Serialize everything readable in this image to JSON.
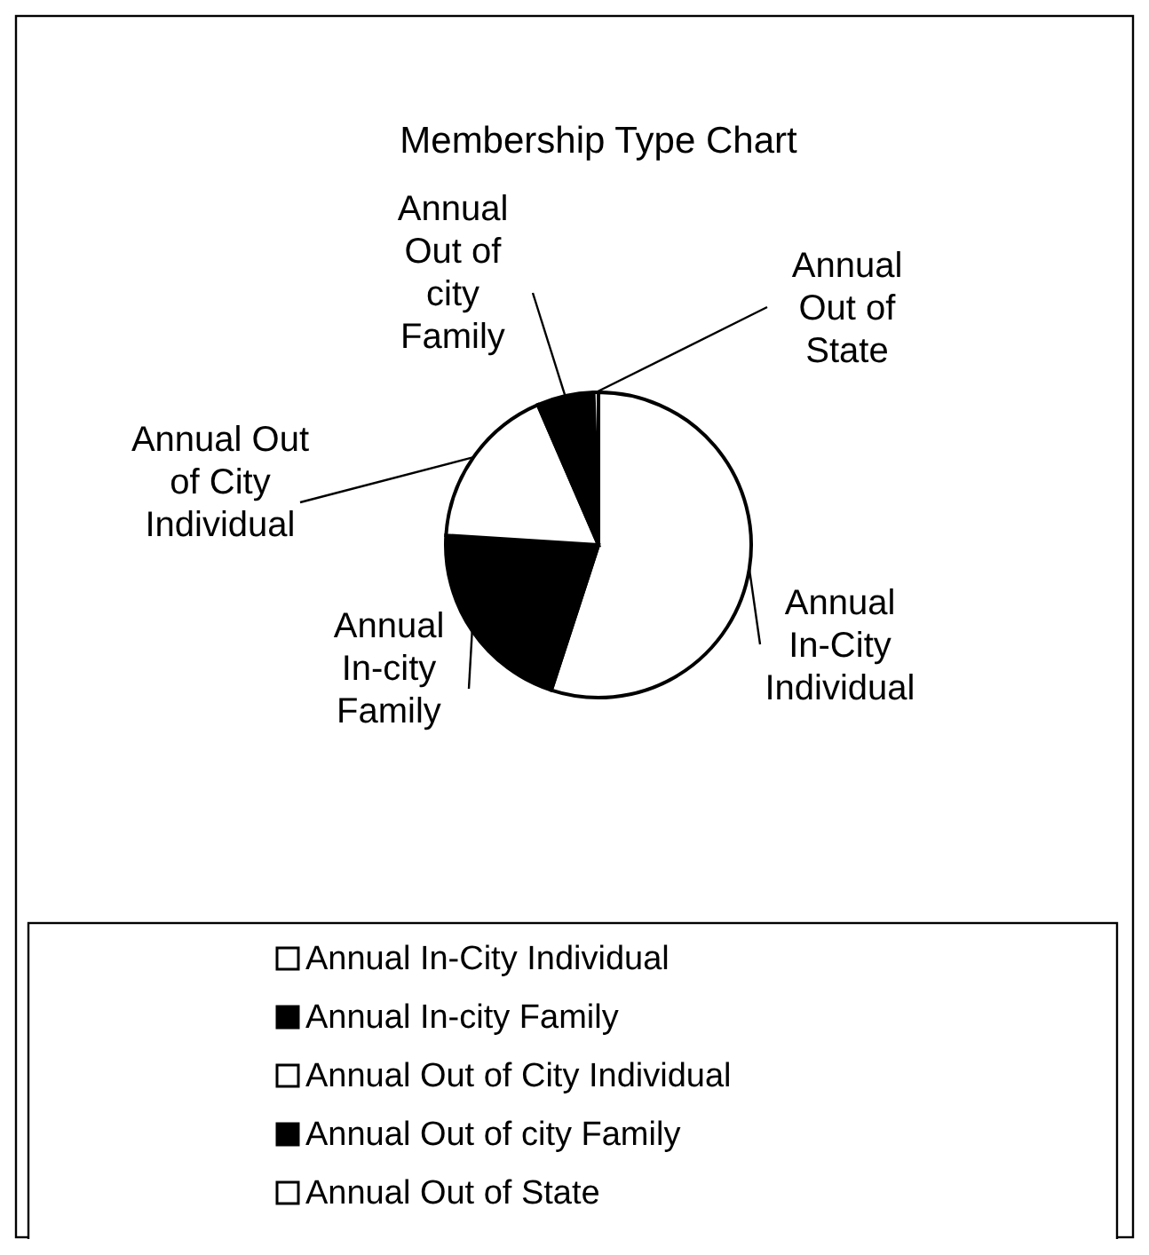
{
  "chart_data": {
    "type": "pie",
    "title": "Membership Type Chart",
    "categories": [
      "Annual In-City Individual",
      "Annual In-city Family",
      "Annual Out of City Individual",
      "Annual Out of city Family",
      "Annual Out of State"
    ],
    "values": [
      55,
      21,
      17.5,
      6,
      0.5
    ],
    "colors": [
      "#ffffff",
      "#000000",
      "#ffffff",
      "#000000",
      "#ffffff"
    ],
    "legend": "bottom"
  }
}
